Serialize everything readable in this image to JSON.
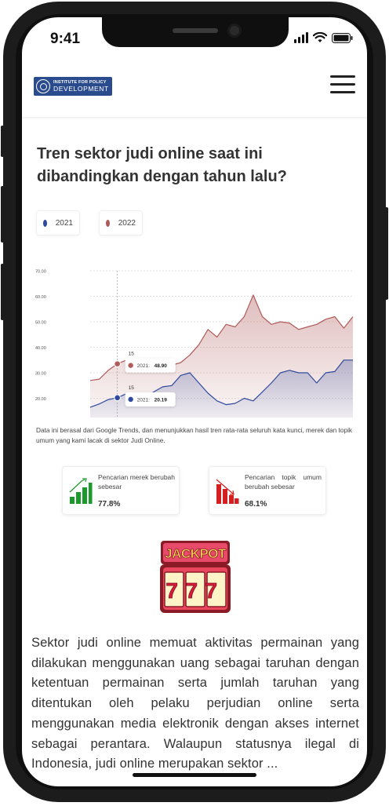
{
  "status_bar": {
    "time": "9:41"
  },
  "header": {
    "logo_line1": "INSTITUTE FOR POLICY",
    "logo_line2": "DEVELOPMENT"
  },
  "title": "Tren sektor judi online saat ini dibandingkan dengan tahun lalu?",
  "legend": [
    {
      "label": "2021",
      "color": "#2e4a9e"
    },
    {
      "label": "2022",
      "color": "#b05a5a"
    }
  ],
  "chart_data": {
    "type": "area",
    "y_ticks": [
      "70.00",
      "60.00",
      "50.00",
      "40.00",
      "30.00",
      "20.00",
      "10.00"
    ],
    "ylim": [
      10,
      70
    ],
    "grid": true,
    "series": [
      {
        "name": "2021",
        "color": "#2e4a9e",
        "values": [
          16.5,
          17.8,
          19.5,
          20.2,
          21.8,
          20.2,
          20.2,
          22.5,
          24.5,
          25,
          29,
          30,
          26,
          22,
          19,
          17.5,
          18,
          20,
          19,
          22.5,
          26,
          30,
          31,
          30,
          30,
          26,
          30,
          30.5,
          35,
          35
        ]
      },
      {
        "name": "2022",
        "color": "#b05a5a",
        "values": [
          27,
          27.5,
          31,
          33.5,
          35,
          33,
          32,
          32,
          32.8,
          33,
          34,
          37,
          41,
          47,
          44,
          49,
          48,
          52,
          60.5,
          52,
          49,
          50,
          49.5,
          47,
          48,
          49,
          51,
          52,
          47.5,
          52
        ]
      }
    ],
    "tooltips": [
      {
        "count": "15",
        "label": "2021:",
        "value": "20.19",
        "series": "2021"
      },
      {
        "count": "15",
        "label": "2021:",
        "value": "48.90",
        "series": "2022"
      }
    ]
  },
  "caption": "Data ini berasal dari Google Trends, dan menunjukkan hasil tren rata-rata seluruh kata kunci, merek dan topik umum yang kami lacak di sektor Judi Online.",
  "stats": [
    {
      "label": "Pencarian merek berubah sebesar",
      "value": "77.8%",
      "icon": "bar-chart-up-icon",
      "color": "#1a9a2a"
    },
    {
      "label": "Pencarian topik umum berubah sebesar",
      "value": "68.1%",
      "icon": "bar-chart-down-icon",
      "color": "#d42020"
    }
  ],
  "jackpot": {
    "text": "JACKPOT",
    "digits": "777"
  },
  "body_text": "Sektor judi online memuat aktivitas permainan yang dilakukan menggunakan uang sebagai taruhan dengan ketentuan permainan serta jumlah taruhan yang ditentukan oleh pelaku perjudian online serta menggunakan media elektronik dengan akses internet sebagai perantara. Walaupun statusnya ilegal di Indonesia, judi online merupakan sektor ..."
}
